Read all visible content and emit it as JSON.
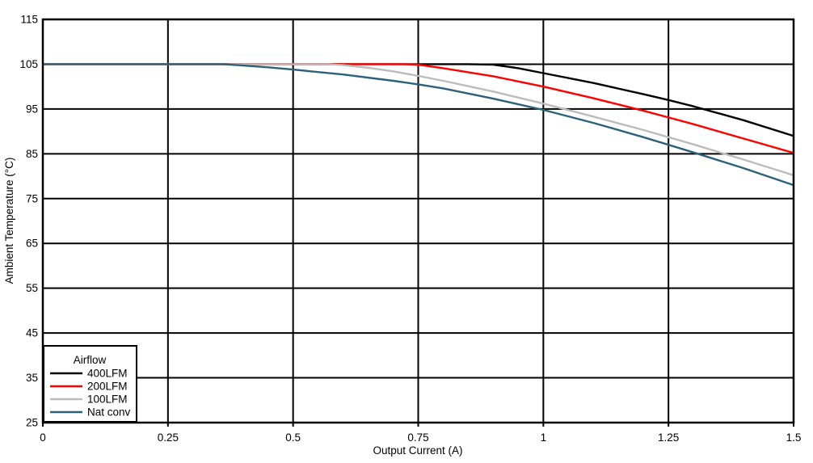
{
  "chart_data": {
    "type": "line",
    "title": "",
    "xlabel": "Output Current (A)",
    "ylabel": "Ambient Temperature (°C)",
    "xlim": [
      0,
      1.5
    ],
    "ylim": [
      25,
      115
    ],
    "grid": true,
    "grid_color": "#000000",
    "xticks": [
      0,
      0.25,
      0.5,
      0.75,
      1,
      1.25,
      1.5
    ],
    "xtick_labels": [
      "0",
      "0.25",
      "0.5",
      "0.75",
      "1",
      "1.25",
      "1.5"
    ],
    "yticks": [
      115,
      105,
      95,
      85,
      75,
      65,
      55,
      45,
      35,
      25
    ],
    "ytick_labels": [
      "115",
      "105",
      "95",
      "85",
      "75",
      "65",
      "55",
      "45",
      "35",
      "25"
    ],
    "legend": {
      "title": "Airflow",
      "position": "bottom-left"
    },
    "series": [
      {
        "name": "400LFM",
        "color": "#000000",
        "points": [
          [
            0,
            105
          ],
          [
            0.85,
            105
          ],
          [
            0.9,
            104.9
          ],
          [
            0.95,
            104.1
          ],
          [
            1.0,
            103
          ],
          [
            1.1,
            100.8
          ],
          [
            1.2,
            98.3
          ],
          [
            1.25,
            97
          ],
          [
            1.3,
            95.6
          ],
          [
            1.4,
            92.5
          ],
          [
            1.5,
            89
          ]
        ]
      },
      {
        "name": "200LFM",
        "color": "#ff0000",
        "points": [
          [
            0,
            105
          ],
          [
            0.72,
            105
          ],
          [
            0.75,
            104.9
          ],
          [
            0.8,
            104.1
          ],
          [
            0.9,
            102.3
          ],
          [
            1.0,
            100
          ],
          [
            1.1,
            97.4
          ],
          [
            1.2,
            94.6
          ],
          [
            1.25,
            93.1
          ],
          [
            1.3,
            91.6
          ],
          [
            1.4,
            88.4
          ],
          [
            1.5,
            85.2
          ]
        ]
      },
      {
        "name": "100LFM",
        "color": "#bcbcbc",
        "points": [
          [
            0,
            105
          ],
          [
            0.57,
            105
          ],
          [
            0.6,
            104.8
          ],
          [
            0.65,
            104.2
          ],
          [
            0.7,
            103.4
          ],
          [
            0.75,
            102.4
          ],
          [
            0.8,
            101.3
          ],
          [
            0.9,
            98.9
          ],
          [
            1.0,
            96.2
          ],
          [
            1.1,
            93.3
          ],
          [
            1.2,
            90.3
          ],
          [
            1.25,
            88.7
          ],
          [
            1.3,
            87.1
          ],
          [
            1.4,
            83.7
          ],
          [
            1.5,
            80.2
          ]
        ]
      },
      {
        "name": "Nat conv",
        "color": "#2c6278",
        "points": [
          [
            0,
            105
          ],
          [
            0.36,
            105
          ],
          [
            0.4,
            104.7
          ],
          [
            0.45,
            104.3
          ],
          [
            0.5,
            103.8
          ],
          [
            0.6,
            102.7
          ],
          [
            0.7,
            101.3
          ],
          [
            0.75,
            100.5
          ],
          [
            0.8,
            99.6
          ],
          [
            0.9,
            97.3
          ],
          [
            1.0,
            94.8
          ],
          [
            1.1,
            91.9
          ],
          [
            1.2,
            88.7
          ],
          [
            1.25,
            87
          ],
          [
            1.3,
            85.3
          ],
          [
            1.4,
            81.8
          ],
          [
            1.5,
            78
          ]
        ]
      }
    ]
  },
  "colors": {
    "background": "#ffffff",
    "axis": "#000000",
    "text": "#000000"
  }
}
